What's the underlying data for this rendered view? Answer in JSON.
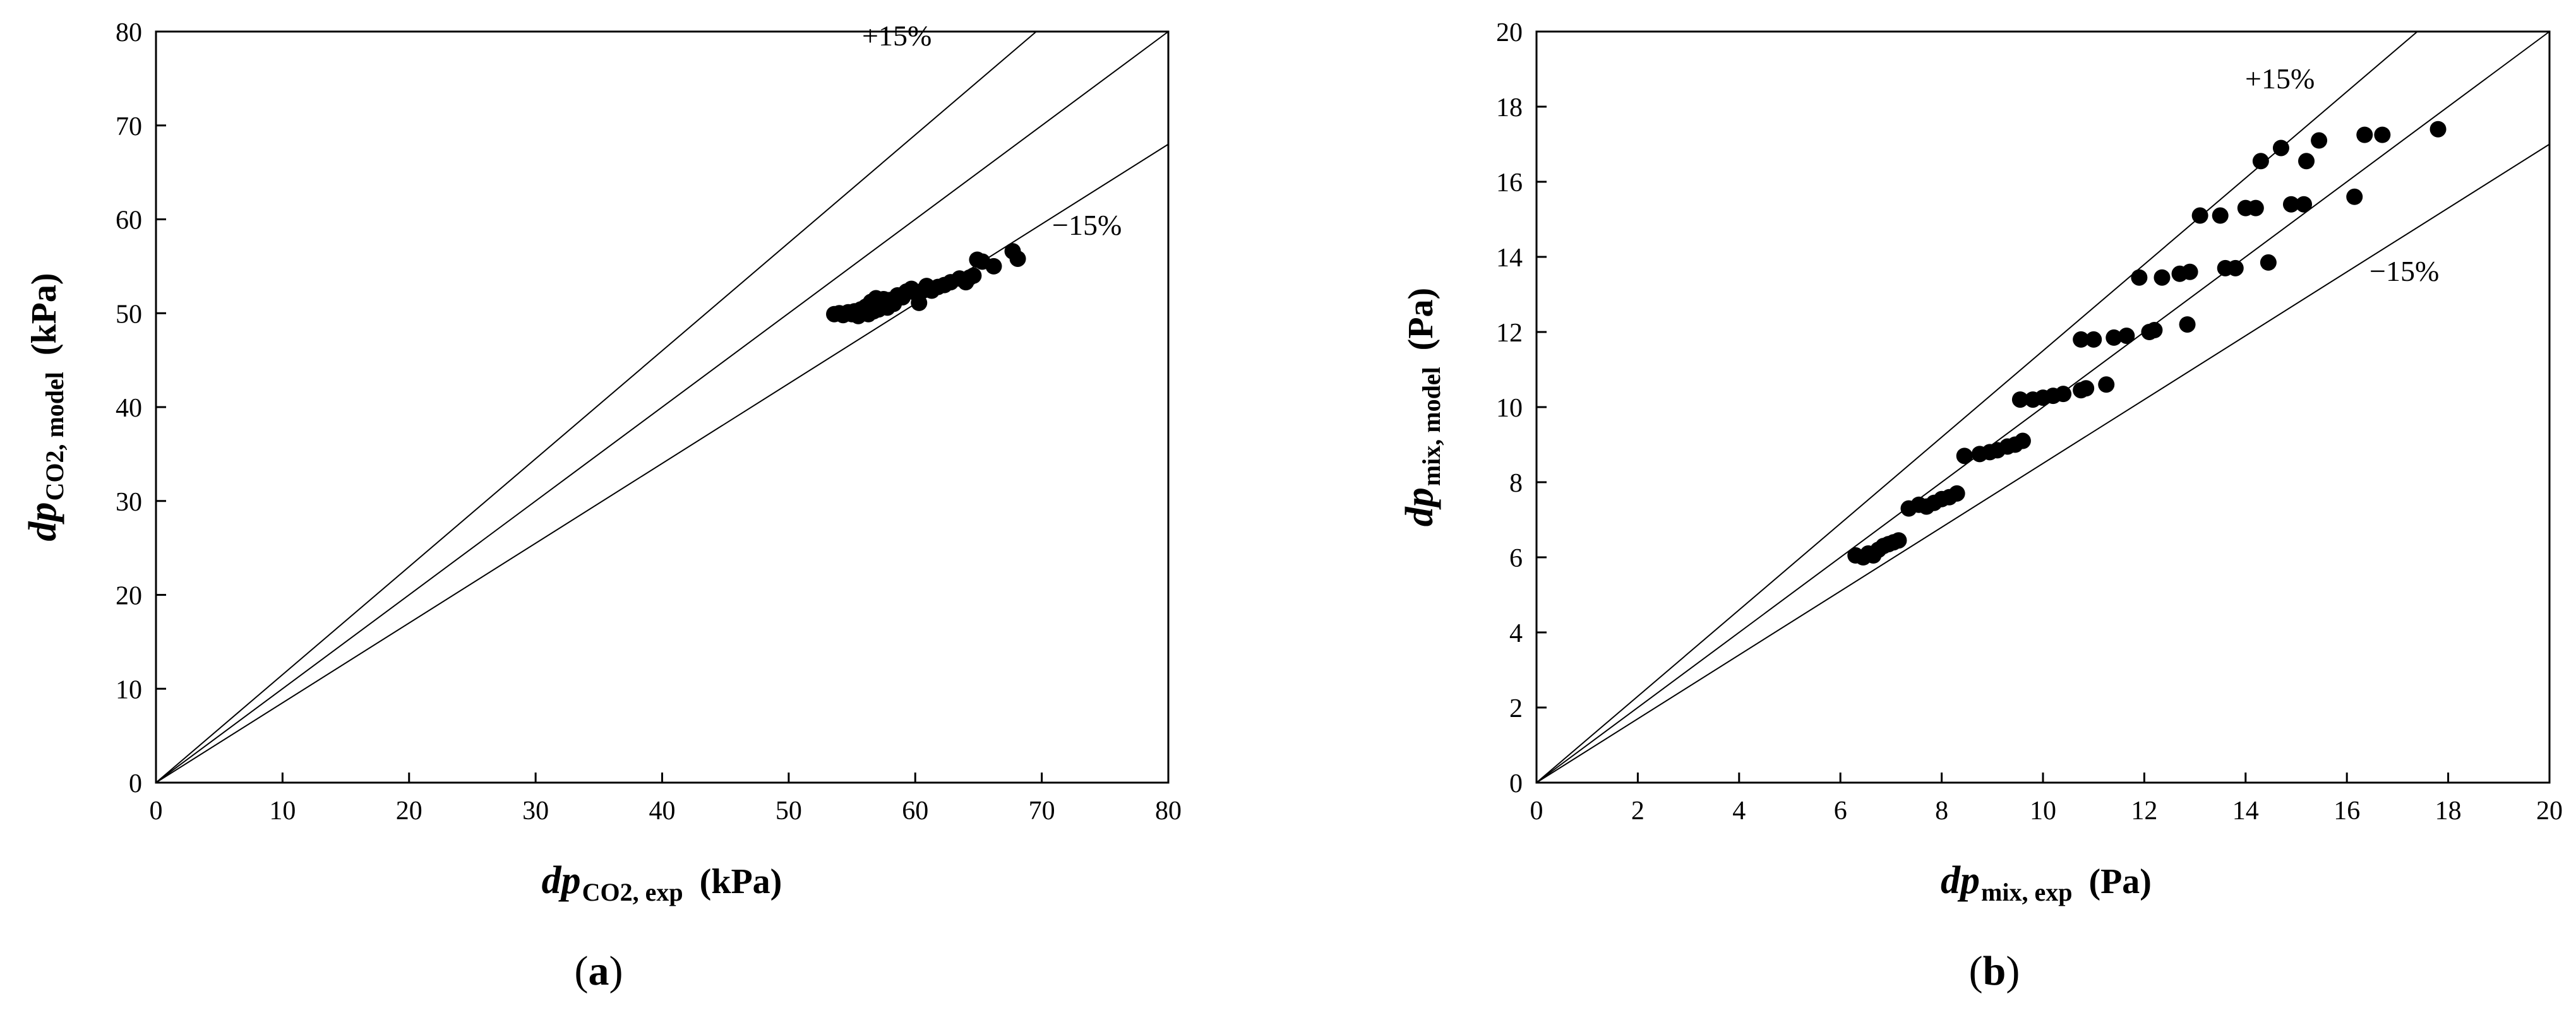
{
  "figure": {
    "panels": [
      {
        "caption": {
          "open": "(",
          "letter": "a",
          "close": ")"
        },
        "xlabel": {
          "main": "dp",
          "sub": "CO2, exp",
          "unit": "(kPa)"
        },
        "ylabel": {
          "main": "dp",
          "sub": "CO2, model",
          "unit": "(kPa)"
        },
        "band_labels": {
          "upper": "+15%",
          "lower": "−15%"
        }
      },
      {
        "caption": {
          "open": "(",
          "letter": "b",
          "close": ")"
        },
        "xlabel": {
          "main": "dp",
          "sub": "mix, exp",
          "unit": "(Pa)"
        },
        "ylabel": {
          "main": "dp",
          "sub": "mix, model",
          "unit": "(Pa)"
        },
        "band_labels": {
          "upper": "+15%",
          "lower": "−15%"
        }
      }
    ]
  },
  "chart_data": [
    {
      "type": "scatter",
      "xlim": [
        0,
        80
      ],
      "ylim": [
        0,
        80
      ],
      "xticks": [
        0,
        10,
        20,
        30,
        40,
        50,
        60,
        70,
        80
      ],
      "yticks": [
        0,
        10,
        20,
        30,
        40,
        50,
        60,
        70,
        80
      ],
      "reference_lines": [
        {
          "slope": 1.15,
          "label": "+15%"
        },
        {
          "slope": 1.0,
          "label": ""
        },
        {
          "slope": 0.85,
          "label": "−15%"
        }
      ],
      "points": [
        [
          53.6,
          49.9
        ],
        [
          54.0,
          50.0
        ],
        [
          54.3,
          49.8
        ],
        [
          54.7,
          50.1
        ],
        [
          55.0,
          49.9
        ],
        [
          55.2,
          50.2
        ],
        [
          55.5,
          49.7
        ],
        [
          55.7,
          50.4
        ],
        [
          55.9,
          50.0
        ],
        [
          56.1,
          50.7
        ],
        [
          56.3,
          49.9
        ],
        [
          56.5,
          51.2
        ],
        [
          56.7,
          50.2
        ],
        [
          56.9,
          51.6
        ],
        [
          57.1,
          50.4
        ],
        [
          57.3,
          50.9
        ],
        [
          57.5,
          51.5
        ],
        [
          57.8,
          50.6
        ],
        [
          58.0,
          51.4
        ],
        [
          58.3,
          51.0
        ],
        [
          58.6,
          51.9
        ],
        [
          59.0,
          51.7
        ],
        [
          59.3,
          52.3
        ],
        [
          59.7,
          52.6
        ],
        [
          60.0,
          52.2
        ],
        [
          60.3,
          51.1
        ],
        [
          60.6,
          52.4
        ],
        [
          60.9,
          52.9
        ],
        [
          61.3,
          52.4
        ],
        [
          61.8,
          52.8
        ],
        [
          62.3,
          53.0
        ],
        [
          62.8,
          53.3
        ],
        [
          63.5,
          53.7
        ],
        [
          64.0,
          53.3
        ],
        [
          64.3,
          53.8
        ],
        [
          64.6,
          54.0
        ],
        [
          64.9,
          55.7
        ],
        [
          65.3,
          55.5
        ],
        [
          66.2,
          55.0
        ],
        [
          67.7,
          56.6
        ],
        [
          68.1,
          55.8
        ]
      ]
    },
    {
      "type": "scatter",
      "xlim": [
        0,
        20
      ],
      "ylim": [
        0,
        20
      ],
      "xticks": [
        0,
        2,
        4,
        6,
        8,
        10,
        12,
        14,
        16,
        18,
        20
      ],
      "yticks": [
        0,
        2,
        4,
        6,
        8,
        10,
        12,
        14,
        16,
        18,
        20
      ],
      "reference_lines": [
        {
          "slope": 1.15,
          "label": "+15%"
        },
        {
          "slope": 1.0,
          "label": ""
        },
        {
          "slope": 0.85,
          "label": "−15%"
        }
      ],
      "points": [
        [
          6.3,
          6.05
        ],
        [
          6.45,
          6.0
        ],
        [
          6.55,
          6.1
        ],
        [
          6.65,
          6.05
        ],
        [
          6.75,
          6.2
        ],
        [
          6.85,
          6.3
        ],
        [
          6.95,
          6.35
        ],
        [
          7.05,
          6.4
        ],
        [
          7.15,
          6.45
        ],
        [
          7.35,
          7.3
        ],
        [
          7.55,
          7.4
        ],
        [
          7.7,
          7.35
        ],
        [
          7.85,
          7.45
        ],
        [
          8.0,
          7.55
        ],
        [
          8.15,
          7.6
        ],
        [
          8.3,
          7.7
        ],
        [
          8.45,
          8.7
        ],
        [
          8.75,
          8.75
        ],
        [
          8.95,
          8.8
        ],
        [
          9.1,
          8.85
        ],
        [
          9.3,
          8.95
        ],
        [
          9.45,
          9.0
        ],
        [
          9.6,
          9.1
        ],
        [
          9.55,
          10.2
        ],
        [
          9.8,
          10.2
        ],
        [
          10.0,
          10.25
        ],
        [
          10.2,
          10.3
        ],
        [
          10.4,
          10.35
        ],
        [
          10.75,
          10.45
        ],
        [
          10.85,
          10.5
        ],
        [
          10.75,
          11.8
        ],
        [
          11.0,
          11.8
        ],
        [
          11.25,
          10.6
        ],
        [
          11.4,
          11.85
        ],
        [
          11.65,
          11.9
        ],
        [
          11.9,
          13.45
        ],
        [
          12.1,
          12.0
        ],
        [
          12.2,
          12.05
        ],
        [
          12.35,
          13.45
        ],
        [
          12.7,
          13.55
        ],
        [
          12.85,
          12.2
        ],
        [
          12.9,
          13.6
        ],
        [
          13.1,
          15.1
        ],
        [
          13.5,
          15.1
        ],
        [
          13.6,
          13.7
        ],
        [
          13.8,
          13.7
        ],
        [
          14.0,
          15.3
        ],
        [
          14.2,
          15.3
        ],
        [
          14.3,
          16.55
        ],
        [
          14.45,
          13.85
        ],
        [
          14.7,
          16.9
        ],
        [
          14.9,
          15.4
        ],
        [
          15.15,
          15.4
        ],
        [
          15.2,
          16.55
        ],
        [
          15.45,
          17.1
        ],
        [
          16.15,
          15.6
        ],
        [
          16.35,
          17.25
        ],
        [
          16.7,
          17.25
        ],
        [
          17.8,
          17.4
        ]
      ]
    }
  ]
}
